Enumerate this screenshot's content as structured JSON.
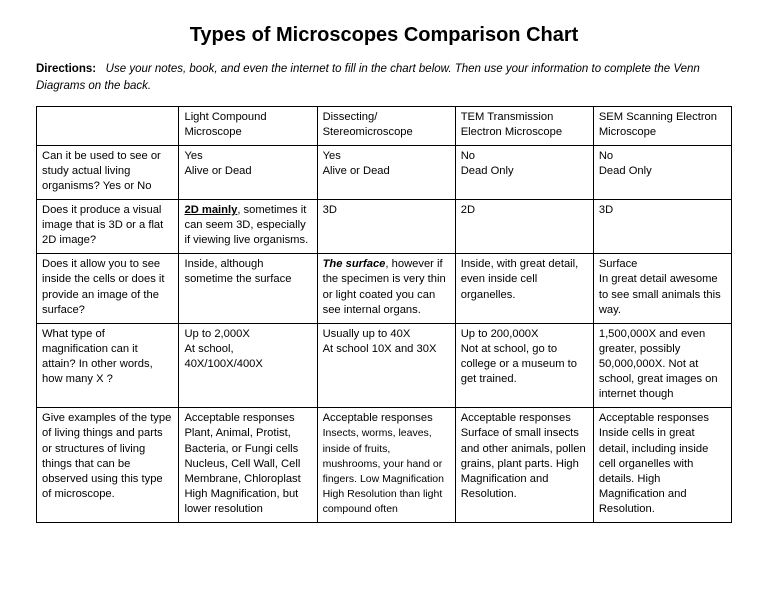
{
  "title": "Types of Microscopes Comparison Chart",
  "directions_label": "Directions:",
  "directions_text": "Use your notes, book, and even the internet to fill in the chart below.  Then use your information to complete the Venn Diagrams on the back.",
  "columns": [
    "",
    "Light Compound Microscope",
    "Dissecting/ Stereomicroscope",
    "TEM  Transmission Electron Microscope",
    "SEM  Scanning Electron Microscope"
  ],
  "rows": [
    {
      "q": "Can it be used to see or study actual living organisms?  Yes or No",
      "c1": "Yes\nAlive or Dead",
      "c2": "Yes\nAlive or Dead",
      "c3": "No\nDead Only",
      "c4": "No\nDead Only"
    },
    {
      "q": "Does it produce a visual image that is 3D or a flat 2D image?",
      "c1_pre": "2D mainly",
      "c1_post": ", sometimes it can seem 3D, especially if viewing live organisms.",
      "c2": "3D",
      "c3": "2D",
      "c4": "3D"
    },
    {
      "q": "Does it allow you to see inside the cells or does it provide an image of the surface?",
      "c1": "Inside, although sometime the surface",
      "c2_pre": "The surface",
      "c2_post": ", however if the specimen is very thin or light coated you can see internal organs.",
      "c3": "Inside, with great detail, even inside cell organelles.",
      "c4": "Surface\nIn great detail awesome to see small animals this way."
    },
    {
      "q": "What type of magnification can it attain?  In other words, how many  X ?",
      "c1": "Up to 2,000X\nAt school, 40X/100X/400X",
      "c2": "Usually up to 40X\nAt school 10X and 30X",
      "c3": "Up to 200,000X\nNot at school, go to college or a museum to get trained.",
      "c4": "1,500,000X and even greater, possibly 50,000,000X.  Not at school, great images on internet though"
    },
    {
      "q": "Give examples of the type of living things and parts or structures of living things that can be observed using this type of microscope.",
      "c1": "Acceptable responses\nPlant, Animal, Protist, Bacteria, or Fungi cells\nNucleus, Cell Wall, Cell Membrane, Chloroplast\nHigh Magnification, but lower resolution",
      "c2a": "Acceptable responses",
      "c2b": "Insects, worms, leaves, inside of fruits, mushrooms, your hand or fingers.  Low Magnification",
      "c2c": "High Resolution than light compound often",
      "c3": "Acceptable responses\nSurface of small insects and other animals, pollen grains, plant parts.  High Magnification and Resolution.",
      "c4": "Acceptable responses\nInside cells in great detail, including inside cell organelles with details.  High Magnification and Resolution."
    }
  ],
  "style": {
    "background": "#ffffff",
    "text_color": "#000000",
    "border_color": "#000000",
    "title_fontsize": 20,
    "body_fontsize": 11.2,
    "directions_fontsize": 11.5,
    "font_family": "Comic Sans MS"
  }
}
